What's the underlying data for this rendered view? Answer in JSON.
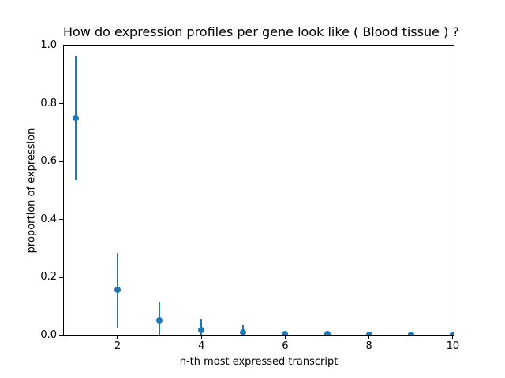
{
  "chart_data": {
    "type": "scatter",
    "title": "How do expression profiles per gene look like ( Blood tissue ) ?",
    "xlabel": "n-th most expressed transcript",
    "ylabel": "proportion of expression",
    "x": [
      1,
      2,
      3,
      4,
      5,
      6,
      7,
      8,
      9,
      10
    ],
    "y": [
      0.75,
      0.158,
      0.052,
      0.02,
      0.012,
      0.006,
      0.005,
      0.003,
      0.003,
      0.002
    ],
    "err_low": [
      0.535,
      0.028,
      0.004,
      0.0,
      0.0,
      0.0,
      0.0,
      0.0,
      0.0,
      0.0
    ],
    "err_high": [
      0.965,
      0.285,
      0.118,
      0.058,
      0.036,
      0.012,
      0.01,
      0.007,
      0.006,
      0.005
    ],
    "xlim": [
      0.72,
      10.02
    ],
    "ylim": [
      0.0,
      1.0
    ],
    "xticks": [
      2,
      4,
      6,
      8,
      10
    ],
    "xtick_labels": [
      "2",
      "4",
      "6",
      "8",
      "10"
    ],
    "yticks": [
      0.0,
      0.2,
      0.4,
      0.6,
      0.8,
      1.0
    ],
    "ytick_labels": [
      "0.0",
      "0.2",
      "0.4",
      "0.6",
      "0.8",
      "1.0"
    ],
    "grid": false,
    "legend": null,
    "marker_color": "#1f77b4",
    "errorbar_color": "#1f77b4",
    "spine_color": "#000000",
    "background_color": "#ffffff"
  }
}
